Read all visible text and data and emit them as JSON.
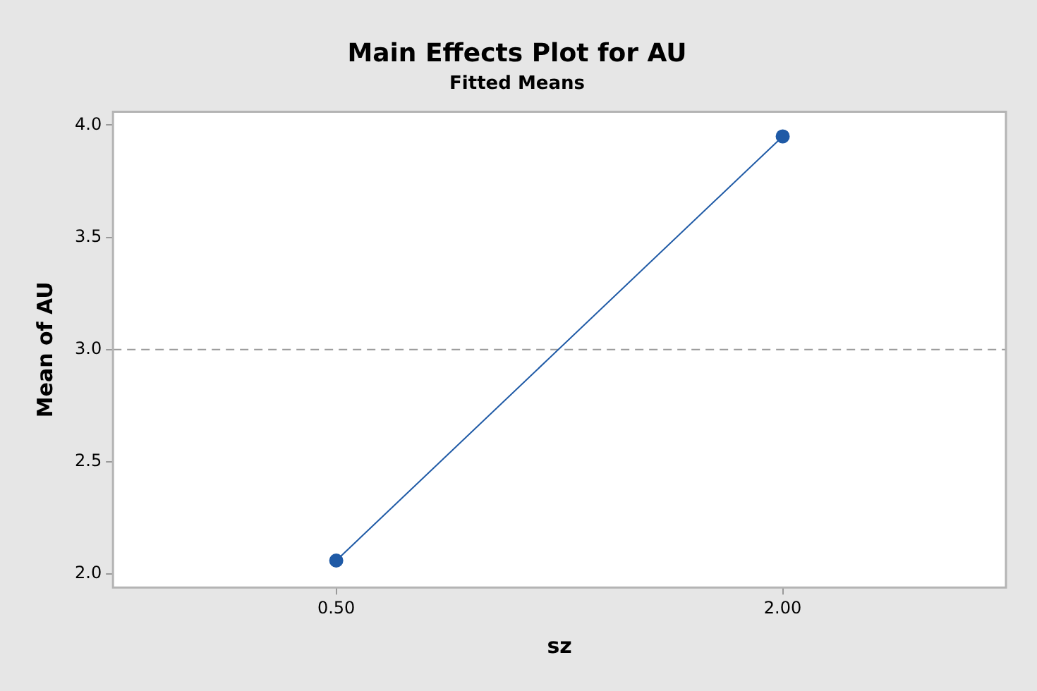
{
  "chart_data": {
    "type": "line",
    "title": "Main Effects Plot for AU",
    "subtitle": "Fitted Means",
    "xlabel": "sz",
    "ylabel": "Mean of AU",
    "categories": [
      "0.50",
      "2.00"
    ],
    "series": [
      {
        "color": "#1f5aa6",
        "values": [
          2.06,
          3.95
        ]
      }
    ],
    "ylim": [
      1.94,
      4.06
    ],
    "yticks": [
      {
        "value": 2,
        "label": "2.0"
      },
      {
        "value": 2.5,
        "label": "2.5"
      },
      {
        "value": 3,
        "label": "3.0"
      },
      {
        "value": 3.5,
        "label": "3.5"
      },
      {
        "value": 4,
        "label": "4.0"
      }
    ],
    "ref_lines": [
      {
        "axis": "y",
        "value": 3,
        "color": "#9a9a9a",
        "line_style": "dashed"
      }
    ],
    "grid": false,
    "legend": false,
    "marker": "circle",
    "line_style": "solid"
  }
}
